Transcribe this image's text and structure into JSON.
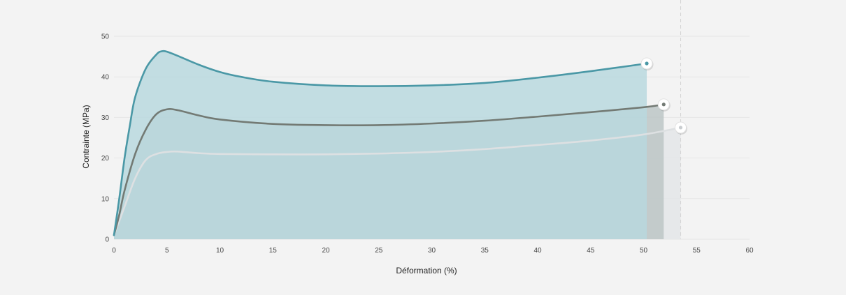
{
  "chart_data": {
    "type": "area",
    "xlabel": "Déformation (%)",
    "ylabel": "Contrainte (MPa)",
    "xlim": [
      0,
      60
    ],
    "ylim": [
      0,
      50
    ],
    "xticks": [
      0,
      5,
      10,
      15,
      20,
      25,
      30,
      35,
      40,
      45,
      50,
      55,
      60
    ],
    "yticks": [
      0,
      10,
      20,
      30,
      40,
      50
    ],
    "grid": "horizontal",
    "reference_line_x": 53.5,
    "series": [
      {
        "color": "#4a98a6",
        "fill": "#b9d8de",
        "end_marker": true,
        "points": [
          [
            0,
            1
          ],
          [
            0.5,
            10
          ],
          [
            1,
            20
          ],
          [
            1.5,
            28
          ],
          [
            2,
            35
          ],
          [
            3,
            42
          ],
          [
            4,
            45.5
          ],
          [
            4.5,
            46.3
          ],
          [
            5,
            46.2
          ],
          [
            6,
            45.2
          ],
          [
            8,
            43
          ],
          [
            10,
            41.2
          ],
          [
            12,
            40
          ],
          [
            15,
            38.8
          ],
          [
            20,
            37.9
          ],
          [
            25,
            37.7
          ],
          [
            30,
            37.9
          ],
          [
            35,
            38.5
          ],
          [
            40,
            39.8
          ],
          [
            45,
            41.4
          ],
          [
            50.3,
            43.3
          ]
        ]
      },
      {
        "color": "#737a74",
        "fill": "#bcc6c6",
        "end_marker": true,
        "points": [
          [
            0,
            1
          ],
          [
            0.5,
            6
          ],
          [
            1,
            12
          ],
          [
            2,
            21
          ],
          [
            3,
            27
          ],
          [
            4,
            30.8
          ],
          [
            5,
            32
          ],
          [
            6,
            31.8
          ],
          [
            8,
            30.5
          ],
          [
            10,
            29.5
          ],
          [
            15,
            28.4
          ],
          [
            20,
            28.1
          ],
          [
            25,
            28.1
          ],
          [
            30,
            28.5
          ],
          [
            35,
            29.2
          ],
          [
            40,
            30.2
          ],
          [
            45,
            31.3
          ],
          [
            50,
            32.5
          ],
          [
            51.9,
            33.2
          ]
        ]
      },
      {
        "color": "#dde0e2",
        "fill": "#e3e5e8",
        "end_marker": true,
        "points": [
          [
            0,
            1
          ],
          [
            1,
            8
          ],
          [
            2,
            15
          ],
          [
            3,
            19.5
          ],
          [
            4,
            21
          ],
          [
            5,
            21.5
          ],
          [
            6,
            21.6
          ],
          [
            8,
            21.2
          ],
          [
            10,
            21
          ],
          [
            15,
            20.9
          ],
          [
            20,
            20.9
          ],
          [
            25,
            21.1
          ],
          [
            30,
            21.5
          ],
          [
            35,
            22.2
          ],
          [
            40,
            23.2
          ],
          [
            45,
            24.3
          ],
          [
            50,
            25.8
          ],
          [
            53.5,
            27.5
          ]
        ]
      }
    ]
  }
}
